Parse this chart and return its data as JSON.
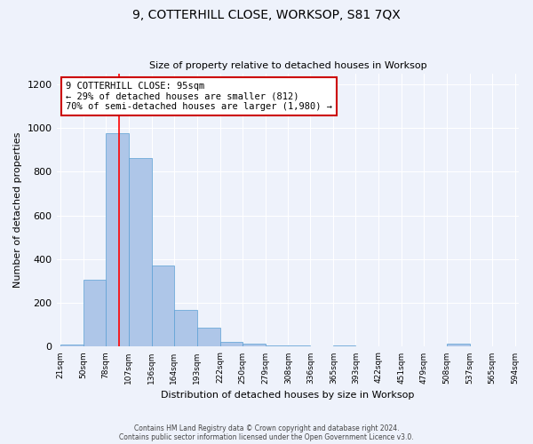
{
  "title": "9, COTTERHILL CLOSE, WORKSOP, S81 7QX",
  "subtitle": "Size of property relative to detached houses in Worksop",
  "xlabel": "Distribution of detached houses by size in Worksop",
  "ylabel": "Number of detached properties",
  "footer_line1": "Contains HM Land Registry data © Crown copyright and database right 2024.",
  "footer_line2": "Contains public sector information licensed under the Open Government Licence v3.0.",
  "bar_edges": [
    21,
    50,
    78,
    107,
    136,
    164,
    193,
    222,
    250,
    279,
    308,
    336,
    365,
    393,
    422,
    451,
    479,
    508,
    537,
    565,
    594
  ],
  "bar_heights": [
    10,
    308,
    975,
    862,
    370,
    170,
    88,
    22,
    13,
    5,
    5,
    3,
    5,
    2,
    2,
    1,
    0,
    13,
    0,
    0
  ],
  "bar_color": "#aec6e8",
  "bar_edge_color": "#5a9fd4",
  "red_line_x": 95,
  "ylim": [
    0,
    1250
  ],
  "yticks": [
    0,
    200,
    400,
    600,
    800,
    1000,
    1200
  ],
  "annotation_text": "9 COTTERHILL CLOSE: 95sqm\n← 29% of detached houses are smaller (812)\n70% of semi-detached houses are larger (1,980) →",
  "annotation_box_color": "#ffffff",
  "annotation_border_color": "#cc0000",
  "background_color": "#eef2fb",
  "grid_color": "#ffffff"
}
